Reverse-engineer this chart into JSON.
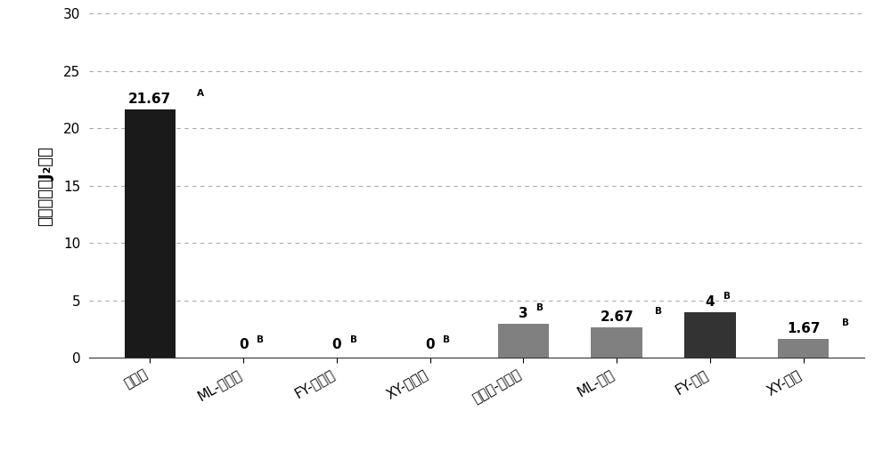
{
  "categories": [
    "蒸馏水",
    "ML-蒸馏水",
    "FY-蒸馏水",
    "XY-蒸馏水",
    "发酵肥-蒸馏水",
    "ML-乙醇",
    "FY-乙醇",
    "XY-乙醇"
  ],
  "values": [
    21.67,
    0,
    0,
    0,
    3,
    2.67,
    4,
    1.67
  ],
  "bar_colors": [
    "#1a1a1a",
    "#4d4d4d",
    "#4d4d4d",
    "#4d4d4d",
    "#808080",
    "#808080",
    "#333333",
    "#808080"
  ],
  "label_texts": [
    "21.67",
    "0",
    "0",
    "0",
    "3",
    "2.67",
    "4",
    "1.67"
  ],
  "superscripts": [
    "A",
    "B",
    "B",
    "B",
    "B",
    "B",
    "B",
    "B"
  ],
  "ylabel": "孵化形成的J₂数量",
  "ylim": [
    0,
    30
  ],
  "yticks": [
    0,
    5,
    10,
    15,
    20,
    25,
    30
  ],
  "background_color": "#ffffff",
  "grid_color": "#aaaaaa",
  "grid_linestyle": "--",
  "label_fontsize": 11,
  "ylabel_fontsize": 13,
  "tick_fontsize": 11,
  "bar_width": 0.55
}
